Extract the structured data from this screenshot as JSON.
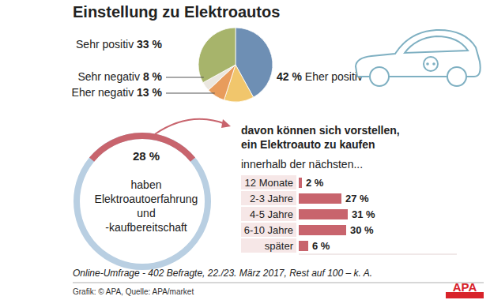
{
  "title": "Einstellung zu Elektroautos",
  "chart_data": [
    {
      "type": "pie",
      "categories": [
        "Eher positiv",
        "Eher negativ",
        "Sehr negativ",
        null,
        "Sehr positiv"
      ],
      "values": [
        42,
        13,
        8,
        4,
        33
      ],
      "value_labels": [
        "42 %",
        "13 %",
        "8 %",
        null,
        "33 %"
      ],
      "colors": [
        "#6e8fb4",
        "#f1c66c",
        "#e89c5c",
        "#ebe7df",
        "#a7b46b"
      ],
      "data_labels": true
    },
    {
      "type": "donut",
      "values": [
        28
      ],
      "value_labels": [
        "28 %"
      ],
      "ylim": [
        0,
        100
      ],
      "annotations": [
        "haben",
        "Elektroautoerfahrung",
        "und",
        "-kaufbereitschaft"
      ],
      "color": "#c8646d",
      "data_labels": true
    },
    {
      "type": "bar",
      "orientation": "horizontal",
      "title": [
        "davon können sich vorstellen,",
        "ein Elektroauto zu kaufen"
      ],
      "subtitle": "innerhalb der nächsten...",
      "categories": [
        "12 Monate",
        "2-3 Jahre",
        "4-5 Jahre",
        "6-10 Jahre",
        "später"
      ],
      "values": [
        2,
        27,
        31,
        30,
        6
      ],
      "value_labels": [
        "2 %",
        "27 %",
        "31 %",
        "30 %",
        "6 %"
      ],
      "xlim": [
        0,
        100
      ],
      "tick_labels": false,
      "color": "#c8646d",
      "data_labels": true
    }
  ],
  "note": "Online-Umfrage - 402 Befragte, 22./23. März 2017, Rest auf 100 – k. A.",
  "source": "Grafik: © APA, Quelle: APA/market",
  "logo": "APA"
}
